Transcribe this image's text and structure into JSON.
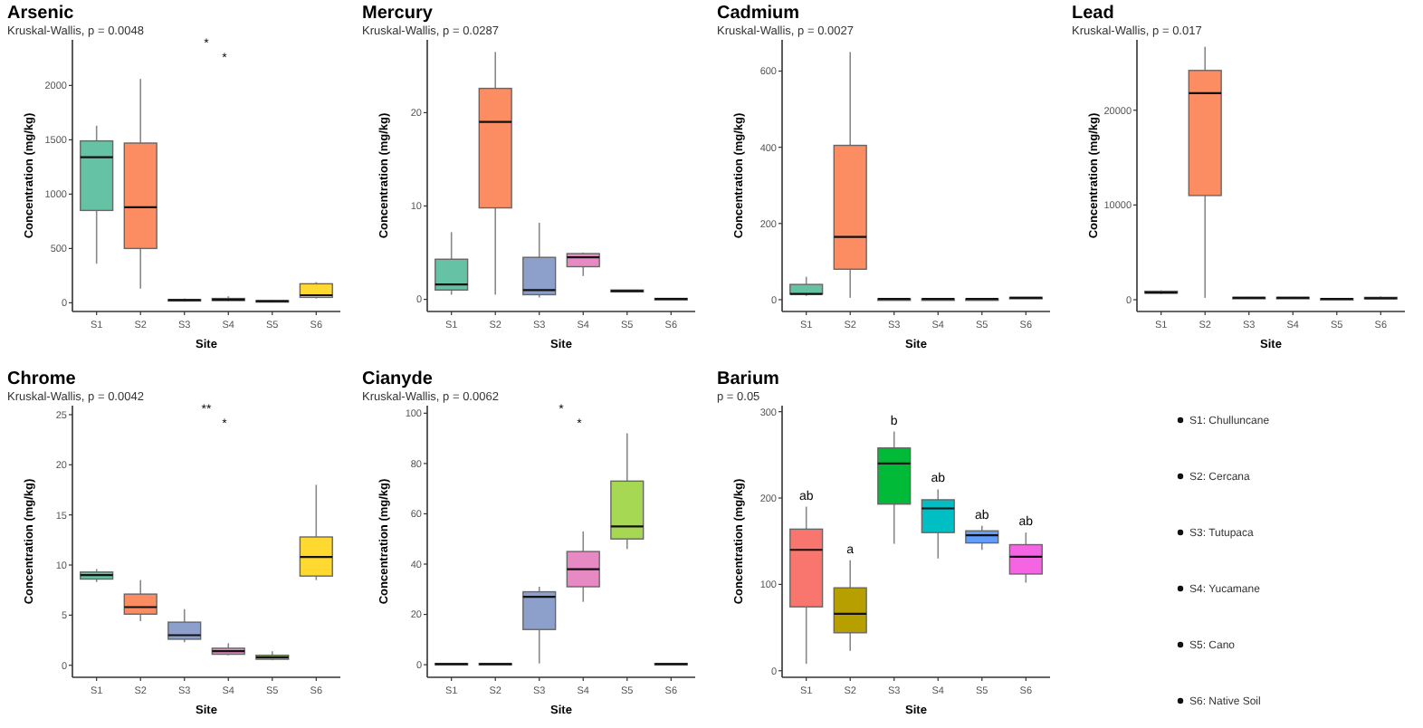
{
  "chart_data": [
    {
      "type": "box",
      "title": "Arsenic",
      "subtitle": "Kruskal-Wallis, p = 0.0048",
      "xlabel": "Site",
      "ylabel": "Concentration (mg/kg)",
      "categories": [
        "S1",
        "S2",
        "S3",
        "S4",
        "S5",
        "S6"
      ],
      "colors": [
        "#66c2a5",
        "#fc8d62",
        "#8da0cb",
        "#e78ac3",
        "#a6d854",
        "#ffd92f"
      ],
      "ylim": [
        -80,
        2420
      ],
      "yticks": [
        0,
        500,
        1000,
        1500,
        2000
      ],
      "grid": false,
      "annotations": [
        "*",
        "*"
      ],
      "boxes": [
        {
          "low": 360,
          "q1": 850,
          "median": 1340,
          "q3": 1490,
          "high": 1630
        },
        {
          "low": 130,
          "q1": 500,
          "median": 880,
          "q3": 1470,
          "high": 2060
        },
        {
          "low": 10,
          "q1": 20,
          "median": 25,
          "q3": 30,
          "high": 40
        },
        {
          "low": 15,
          "q1": 20,
          "median": 30,
          "q3": 40,
          "high": 60
        },
        {
          "low": 5,
          "q1": 10,
          "median": 15,
          "q3": 20,
          "high": 25
        },
        {
          "low": 40,
          "q1": 50,
          "median": 70,
          "q3": 175,
          "high": 190
        }
      ]
    },
    {
      "type": "box",
      "title": "Mercury",
      "subtitle": "Kruskal-Wallis, p = 0.0287",
      "xlabel": "Site",
      "ylabel": "Concentration (mg/kg)",
      "categories": [
        "S1",
        "S2",
        "S3",
        "S4",
        "S5",
        "S6"
      ],
      "colors": [
        "#66c2a5",
        "#fc8d62",
        "#8da0cb",
        "#e78ac3",
        "#a6d854",
        "#ffd92f"
      ],
      "ylim": [
        -1.3,
        27.8
      ],
      "yticks": [
        0,
        10,
        20
      ],
      "grid": false,
      "boxes": [
        {
          "low": 0.5,
          "q1": 1,
          "median": 1.6,
          "q3": 4.3,
          "high": 7.2
        },
        {
          "low": 0.5,
          "q1": 9.8,
          "median": 19,
          "q3": 22.6,
          "high": 26.5
        },
        {
          "low": 0.2,
          "q1": 0.5,
          "median": 1,
          "q3": 4.5,
          "high": 8.2
        },
        {
          "low": 2.5,
          "q1": 3.5,
          "median": 4.5,
          "q3": 4.9,
          "high": 5
        },
        {
          "low": 0.8,
          "q1": 0.8,
          "median": 0.9,
          "q3": 1,
          "high": 1
        },
        {
          "low": 0,
          "q1": 0,
          "median": 0.05,
          "q3": 0.1,
          "high": 0.1
        }
      ]
    },
    {
      "type": "box",
      "title": "Cadmium",
      "subtitle": "Kruskal-Wallis, p = 0.0027",
      "xlabel": "Site",
      "ylabel": "Concentration (mg/kg)",
      "categories": [
        "S1",
        "S2",
        "S3",
        "S4",
        "S5",
        "S6"
      ],
      "colors": [
        "#66c2a5",
        "#fc8d62",
        "#8da0cb",
        "#e78ac3",
        "#a6d854",
        "#ffd92f"
      ],
      "ylim": [
        -31,
        682
      ],
      "yticks": [
        0,
        200,
        400,
        600
      ],
      "grid": false,
      "boxes": [
        {
          "low": 10,
          "q1": 15,
          "median": 15,
          "q3": 40,
          "high": 60
        },
        {
          "low": 5,
          "q1": 80,
          "median": 165,
          "q3": 405,
          "high": 650
        },
        {
          "low": 1,
          "q1": 1,
          "median": 2,
          "q3": 2,
          "high": 3
        },
        {
          "low": 1,
          "q1": 1,
          "median": 2,
          "q3": 2,
          "high": 3
        },
        {
          "low": 1,
          "q1": 1,
          "median": 2,
          "q3": 2,
          "high": 3
        },
        {
          "low": 3,
          "q1": 3,
          "median": 5,
          "q3": 6,
          "high": 7
        }
      ]
    },
    {
      "type": "box",
      "title": "Lead",
      "subtitle": "Kruskal-Wallis, p = 0.017",
      "xlabel": "Site",
      "ylabel": "Concentration (mg/kg)",
      "categories": [
        "S1",
        "S2",
        "S3",
        "S4",
        "S5",
        "S6"
      ],
      "colors": [
        "#66c2a5",
        "#fc8d62",
        "#8da0cb",
        "#e78ac3",
        "#a6d854",
        "#ffd92f"
      ],
      "ylim": [
        -1240,
        27430
      ],
      "yticks": [
        0,
        10000,
        20000
      ],
      "grid": false,
      "boxes": [
        {
          "low": 600,
          "q1": 700,
          "median": 750,
          "q3": 900,
          "high": 1000
        },
        {
          "low": 200,
          "q1": 11000,
          "median": 21800,
          "q3": 24200,
          "high": 26700
        },
        {
          "low": 100,
          "q1": 150,
          "median": 200,
          "q3": 250,
          "high": 300
        },
        {
          "low": 100,
          "q1": 150,
          "median": 200,
          "q3": 250,
          "high": 300
        },
        {
          "low": 50,
          "q1": 80,
          "median": 100,
          "q3": 120,
          "high": 150
        },
        {
          "low": 50,
          "q1": 100,
          "median": 150,
          "q3": 250,
          "high": 350
        }
      ]
    },
    {
      "type": "box",
      "title": "Chrome",
      "subtitle": "Kruskal-Wallis, p = 0.0042",
      "xlabel": "Site",
      "ylabel": "Concentration (mg/kg)",
      "categories": [
        "S1",
        "S2",
        "S3",
        "S4",
        "S5",
        "S6"
      ],
      "colors": [
        "#66c2a5",
        "#fc8d62",
        "#8da0cb",
        "#e78ac3",
        "#a6d854",
        "#ffd92f"
      ],
      "ylim": [
        -1.2,
        25.9
      ],
      "yticks": [
        0,
        5,
        10,
        15,
        20,
        25
      ],
      "grid": false,
      "annotations": [
        "**",
        "*"
      ],
      "boxes": [
        {
          "low": 8.3,
          "q1": 8.6,
          "median": 9,
          "q3": 9.3,
          "high": 9.6
        },
        {
          "low": 4.4,
          "q1": 5.1,
          "median": 5.8,
          "q3": 7.1,
          "high": 8.5
        },
        {
          "low": 2.3,
          "q1": 2.6,
          "median": 3,
          "q3": 4.3,
          "high": 5.6
        },
        {
          "low": 1,
          "q1": 1.1,
          "median": 1.4,
          "q3": 1.7,
          "high": 2.2
        },
        {
          "low": 0.5,
          "q1": 0.6,
          "median": 0.8,
          "q3": 1,
          "high": 1.4
        },
        {
          "low": 8.5,
          "q1": 8.9,
          "median": 10.8,
          "q3": 12.8,
          "high": 18
        }
      ]
    },
    {
      "type": "box",
      "title": "Cianyde",
      "subtitle": "Kruskal-Wallis, p = 0.0062",
      "xlabel": "Site",
      "ylabel": "Concentration (mg/kg)",
      "categories": [
        "S1",
        "S2",
        "S3",
        "S4",
        "S5",
        "S6"
      ],
      "colors": [
        "#66c2a5",
        "#fc8d62",
        "#8da0cb",
        "#e78ac3",
        "#a6d854",
        "#ffd92f"
      ],
      "ylim": [
        -5,
        103
      ],
      "yticks": [
        0,
        20,
        40,
        60,
        80,
        100
      ],
      "grid": false,
      "annotations": [
        "*",
        "*"
      ],
      "boxes": [
        {
          "low": 0,
          "q1": 0,
          "median": 0.3,
          "q3": 0.5,
          "high": 0.5
        },
        {
          "low": 0,
          "q1": 0,
          "median": 0.3,
          "q3": 0.5,
          "high": 0.5
        },
        {
          "low": 0.5,
          "q1": 14,
          "median": 27,
          "q3": 29,
          "high": 31
        },
        {
          "low": 25,
          "q1": 31,
          "median": 38,
          "q3": 45,
          "high": 53
        },
        {
          "low": 46,
          "q1": 50,
          "median": 55,
          "q3": 73,
          "high": 92
        },
        {
          "low": 0,
          "q1": 0,
          "median": 0.3,
          "q3": 0.5,
          "high": 0.5
        }
      ]
    },
    {
      "type": "box",
      "title": "Barium",
      "subtitle": "p = 0.05",
      "xlabel": "Site",
      "ylabel": "Concentration (mg/kg)",
      "categories": [
        "S1",
        "S2",
        "S3",
        "S4",
        "S5",
        "S6"
      ],
      "colors": [
        "#f8766d",
        "#b79f00",
        "#00ba38",
        "#00bfc4",
        "#619cff",
        "#f564e3"
      ],
      "ylim": [
        -7.6,
        307
      ],
      "yticks": [
        0,
        100,
        200,
        300
      ],
      "grid": false,
      "annotations": [
        {
          "text": "ab",
          "x": "S1",
          "y": 190
        },
        {
          "text": "a",
          "x": "S2",
          "y": 128
        },
        {
          "text": "b",
          "x": "S3",
          "y": 277
        },
        {
          "text": "ab",
          "x": "S4",
          "y": 210
        },
        {
          "text": "ab",
          "x": "S5",
          "y": 168
        },
        {
          "text": "ab",
          "x": "S6",
          "y": 160
        }
      ],
      "boxes": [
        {
          "low": 8,
          "q1": 74,
          "median": 140,
          "q3": 164,
          "high": 190
        },
        {
          "low": 23,
          "q1": 44,
          "median": 66,
          "q3": 96,
          "high": 128
        },
        {
          "low": 147,
          "q1": 193,
          "median": 240,
          "q3": 258,
          "high": 277
        },
        {
          "low": 130,
          "q1": 160,
          "median": 188,
          "q3": 198,
          "high": 210
        },
        {
          "low": 140,
          "q1": 148,
          "median": 157,
          "q3": 162,
          "high": 168
        },
        {
          "low": 102,
          "q1": 112,
          "median": 132,
          "q3": 146,
          "high": 160
        }
      ]
    },
    {
      "type": "other",
      "annotations": [
        "S1: Chulluncane",
        "S2: Cercana",
        "S3: Tutupaca",
        "S4: Yucamane",
        "S5: Cano",
        "S6: Native Soil"
      ]
    }
  ]
}
